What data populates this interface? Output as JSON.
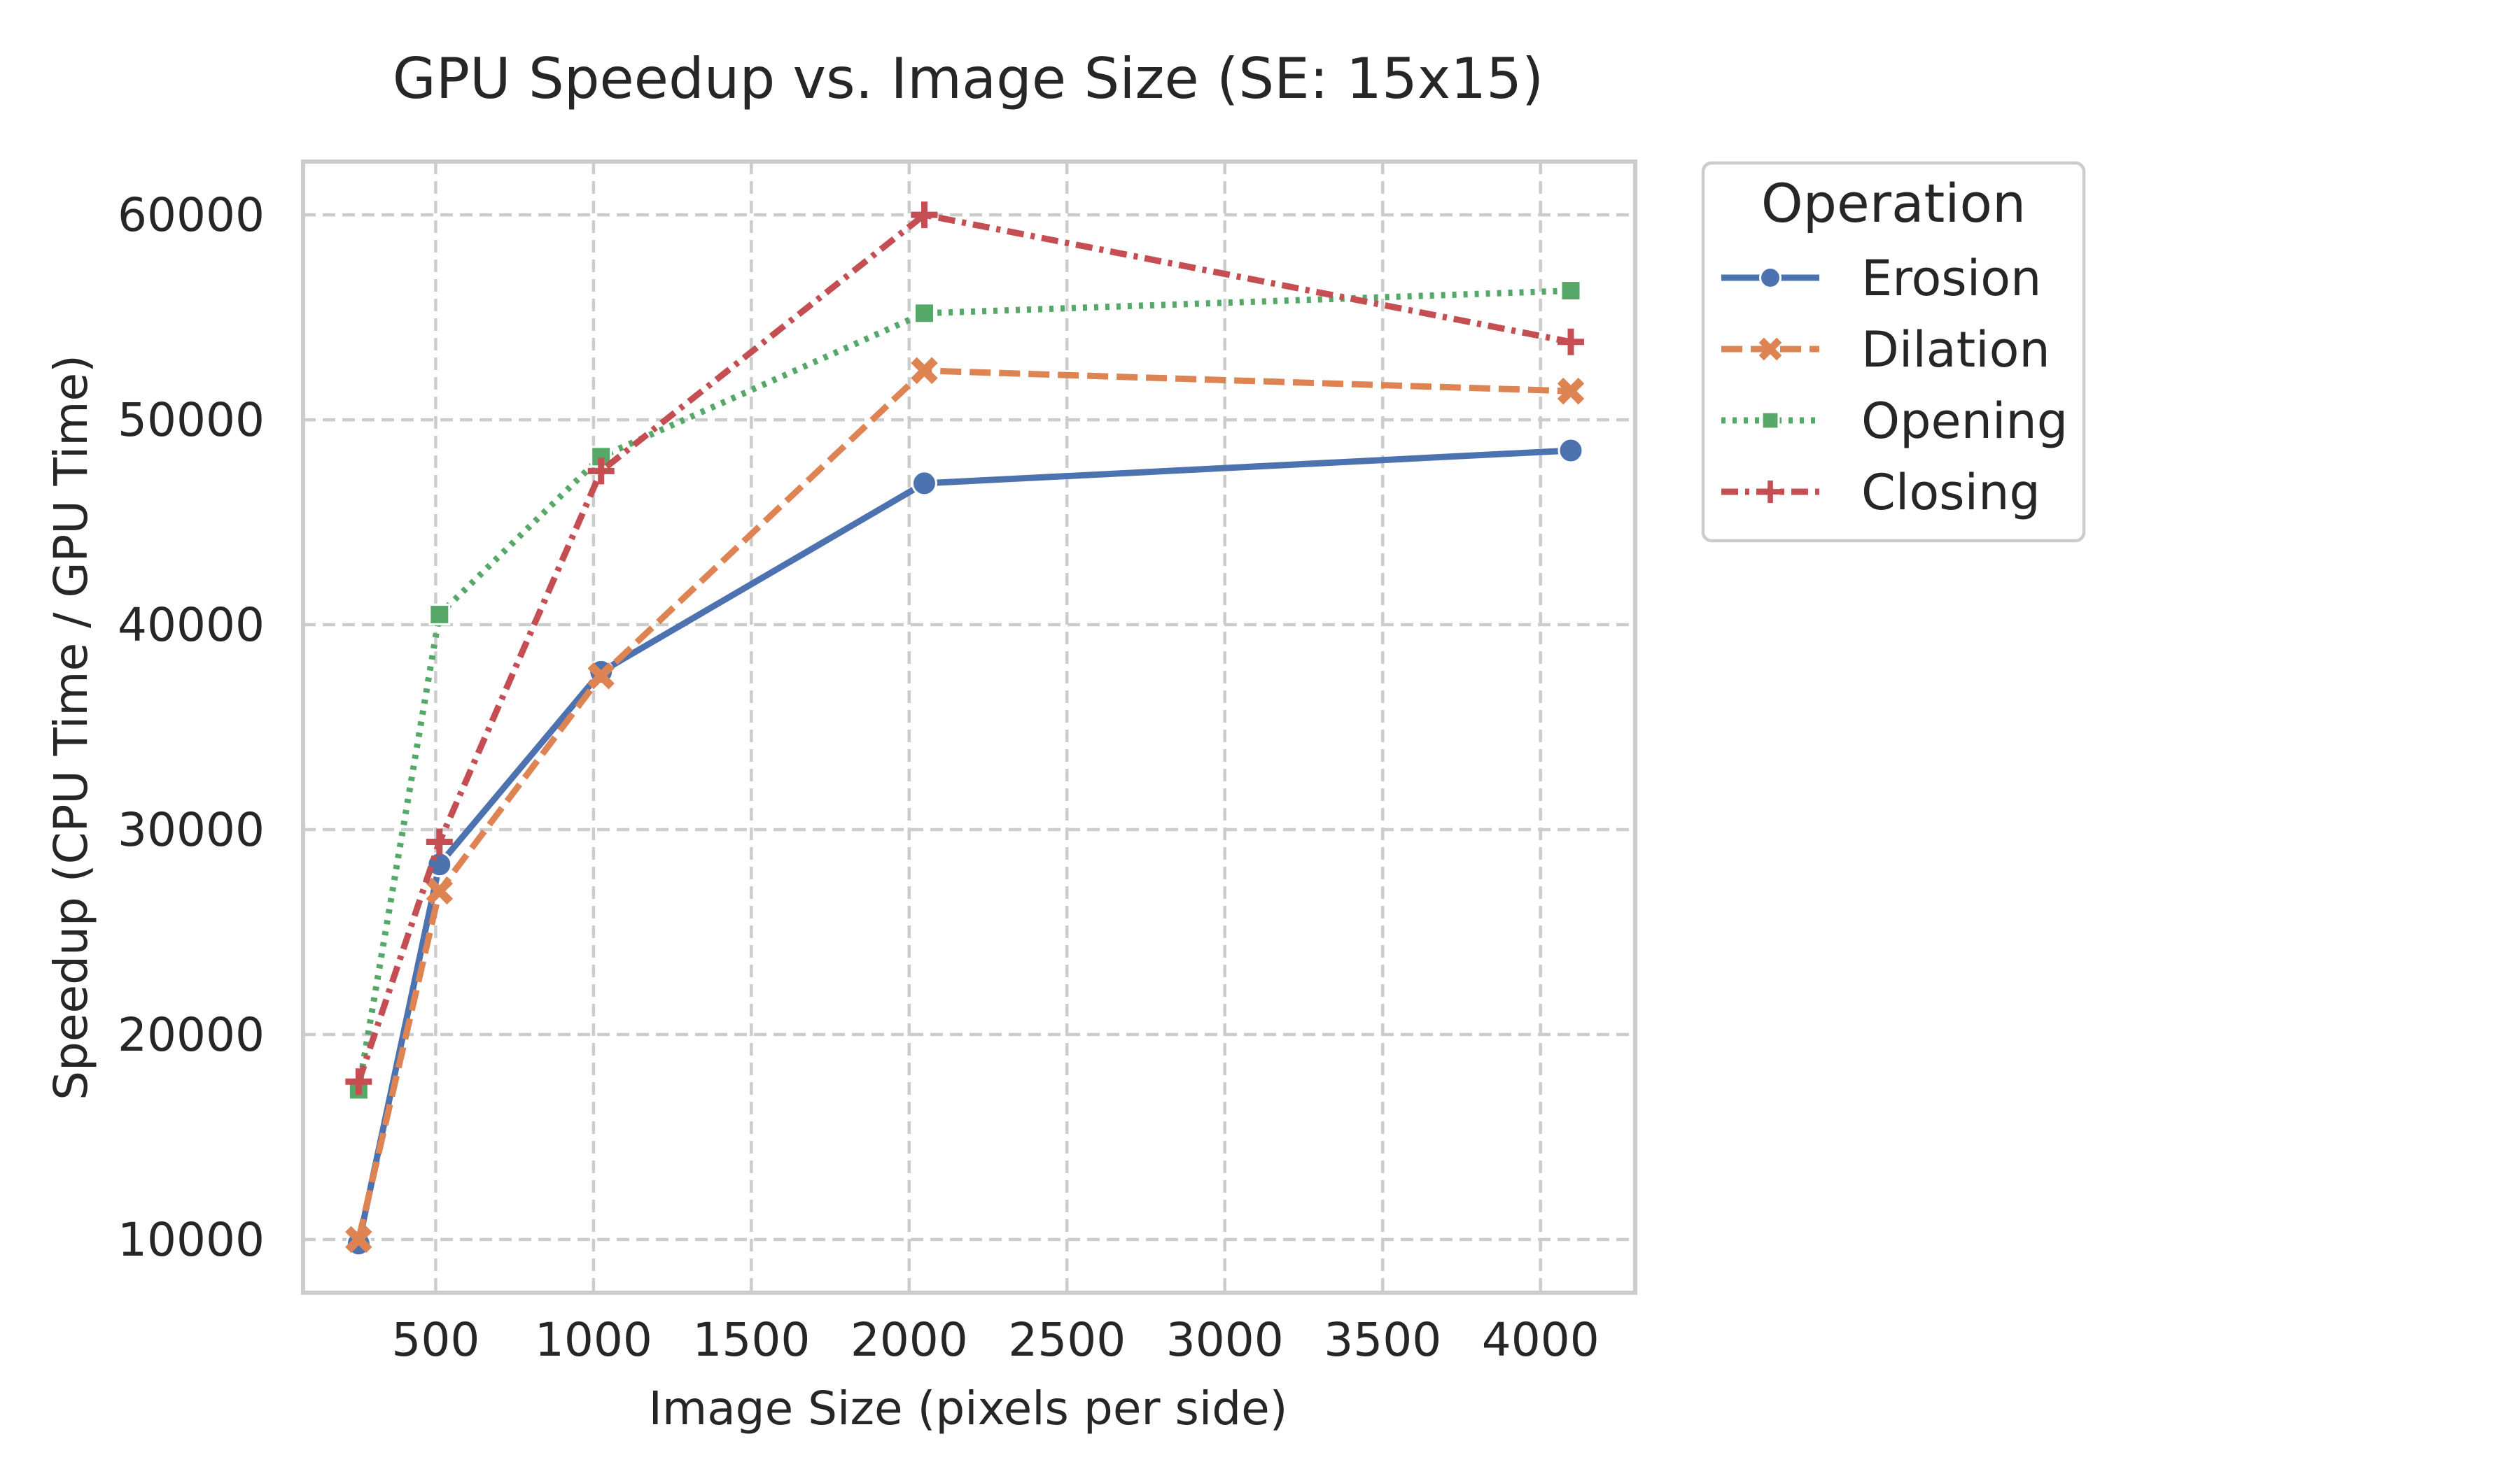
{
  "chart_data": {
    "type": "line",
    "title": "GPU Speedup vs. Image Size (SE: 15x15)",
    "xlabel": "Image Size (pixels per side)",
    "ylabel": "Speedup (CPU Time / GPU Time)",
    "xlim": [
      80,
      4300
    ],
    "ylim": [
      7400,
      62600
    ],
    "xticks": [
      500,
      1000,
      1500,
      2000,
      2500,
      3000,
      3500,
      4000
    ],
    "yticks": [
      10000,
      20000,
      30000,
      40000,
      50000,
      60000
    ],
    "grid": true,
    "legend": {
      "title": "Operation",
      "placement": "outside-right"
    },
    "x": [
      256,
      512,
      1024,
      2048,
      4096
    ],
    "series": [
      {
        "name": "Erosion",
        "values": [
          9800,
          28300,
          37700,
          46900,
          48500
        ],
        "color": "#4c72b0",
        "marker": "circle",
        "dash": ""
      },
      {
        "name": "Dilation",
        "values": [
          10000,
          27000,
          37500,
          52400,
          51400
        ],
        "color": "#dd8452",
        "marker": "x",
        "dash": "30 12"
      },
      {
        "name": "Opening",
        "values": [
          17300,
          40500,
          48200,
          55200,
          56300
        ],
        "color": "#55a868",
        "marker": "square",
        "dash": "6 10"
      },
      {
        "name": "Closing",
        "values": [
          17700,
          29400,
          47500,
          60000,
          53800
        ],
        "color": "#c44e52",
        "marker": "plus",
        "dash": "24 10 6 10"
      }
    ]
  }
}
